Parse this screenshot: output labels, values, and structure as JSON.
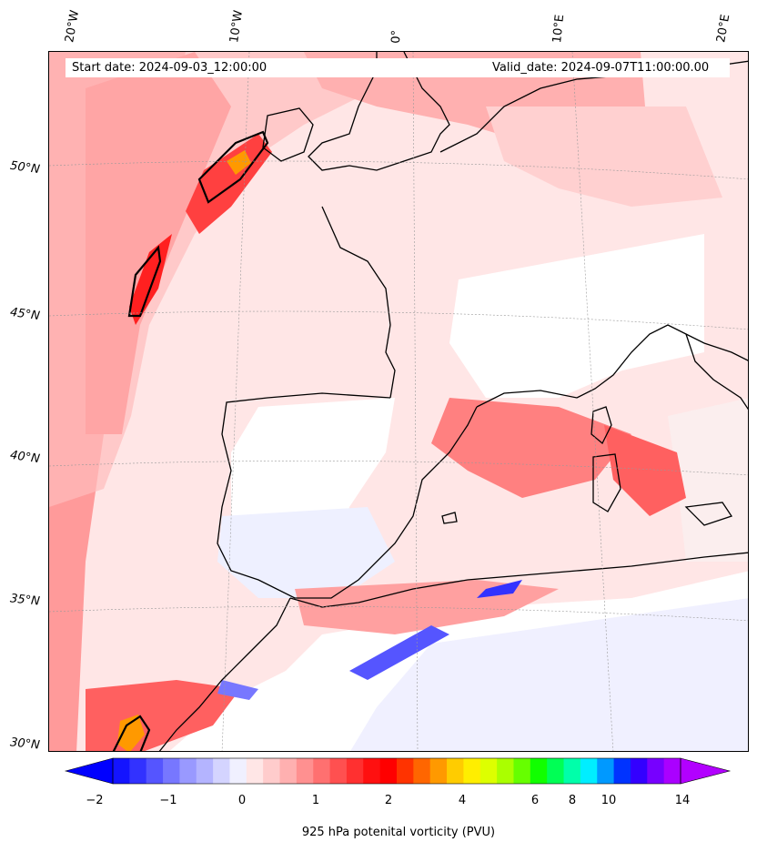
{
  "header": {
    "start_date": "Start date: 2024-09-03_12:00:00",
    "valid_date": "Valid_date: 2024-09-07T11:00:00.00"
  },
  "map": {
    "projection": "lambert-conic",
    "lon_labels": [
      "20°W",
      "10°W",
      "0°",
      "10°E",
      "20°E"
    ],
    "lat_labels": [
      "50°N",
      "45°N",
      "40°N",
      "35°N",
      "30°N"
    ],
    "coastline_color": "#000000"
  },
  "colorbar": {
    "title": "925 hPa potenital vorticity (PVU)",
    "tick_labels": [
      "−2",
      "−1",
      "0",
      "1",
      "2",
      "4",
      "6",
      "8",
      "10",
      "14"
    ],
    "colors": [
      "#1414ff",
      "#3232ff",
      "#5555ff",
      "#7777ff",
      "#9999ff",
      "#b4b4ff",
      "#d4d4ff",
      "#f0f0ff",
      "#ffe6e6",
      "#ffcccc",
      "#ffb0b0",
      "#ff9090",
      "#ff7070",
      "#ff5050",
      "#ff3030",
      "#ff1010",
      "#ff0000",
      "#ff3300",
      "#ff6600",
      "#ff9900",
      "#ffcc00",
      "#ffee00",
      "#ddff00",
      "#aaff00",
      "#66ff00",
      "#11ff00",
      "#00ff55",
      "#00ffaa",
      "#00eeff",
      "#0099ff",
      "#0033ff",
      "#3300ff",
      "#7700ff",
      "#aa00ff"
    ],
    "extend_low": "#0000ff",
    "extend_high": "#b200ff"
  }
}
